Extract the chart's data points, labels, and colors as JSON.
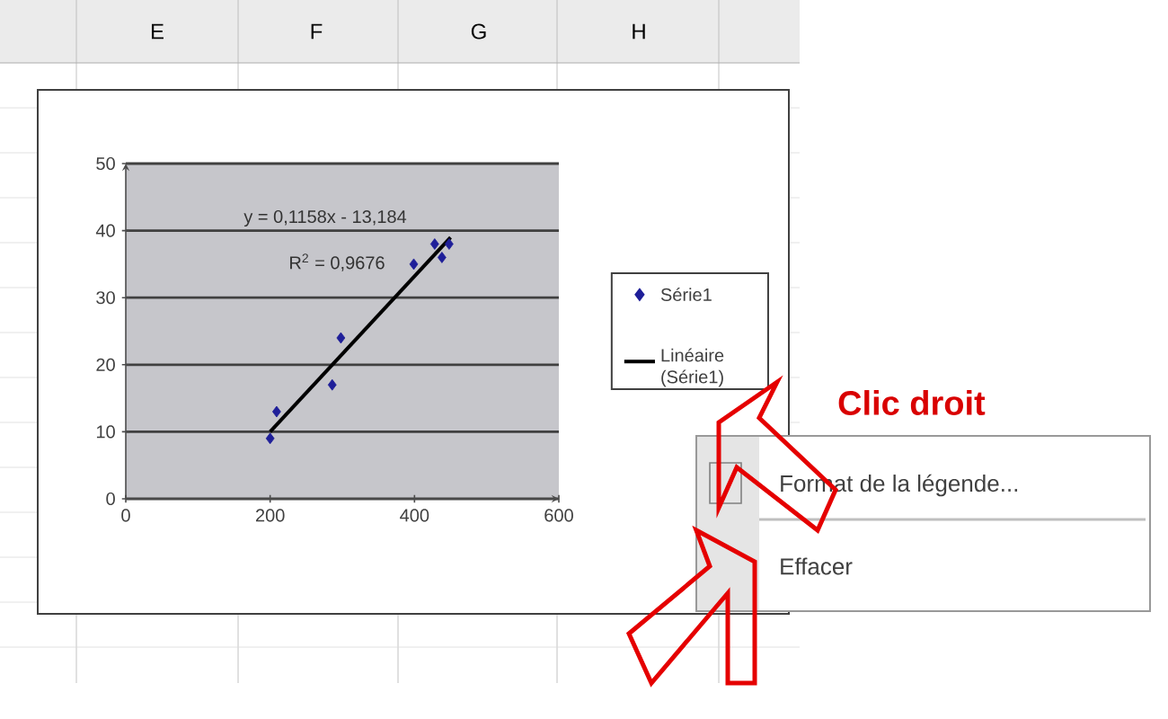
{
  "chart_data": {
    "type": "scatter",
    "xlim": [
      0,
      600
    ],
    "xticks": [
      0,
      200,
      400,
      600
    ],
    "ylim": [
      0,
      50
    ],
    "yticks": [
      0,
      10,
      20,
      30,
      40,
      50
    ],
    "grid": "y",
    "legend": "right",
    "series": [
      {
        "name": "Série1",
        "marker": "diamond",
        "color": "#1f1f99",
        "x": [
          200,
          209,
          286,
          298,
          399,
          428,
          438,
          448
        ],
        "values": [
          9,
          13,
          17,
          24,
          35,
          38,
          36,
          38
        ]
      },
      {
        "name": "Linéaire (Série1)",
        "type": "line",
        "color": "#000000",
        "x": [
          200,
          450
        ],
        "values": [
          10,
          39
        ]
      }
    ],
    "annotations": [
      "y = 0,1158x - 13,184",
      "R$^{2}$ = 0,9676",
      "Clic droit",
      "Format de la légende...",
      "Effacer",
      "E",
      "F",
      "G",
      "H"
    ]
  }
}
